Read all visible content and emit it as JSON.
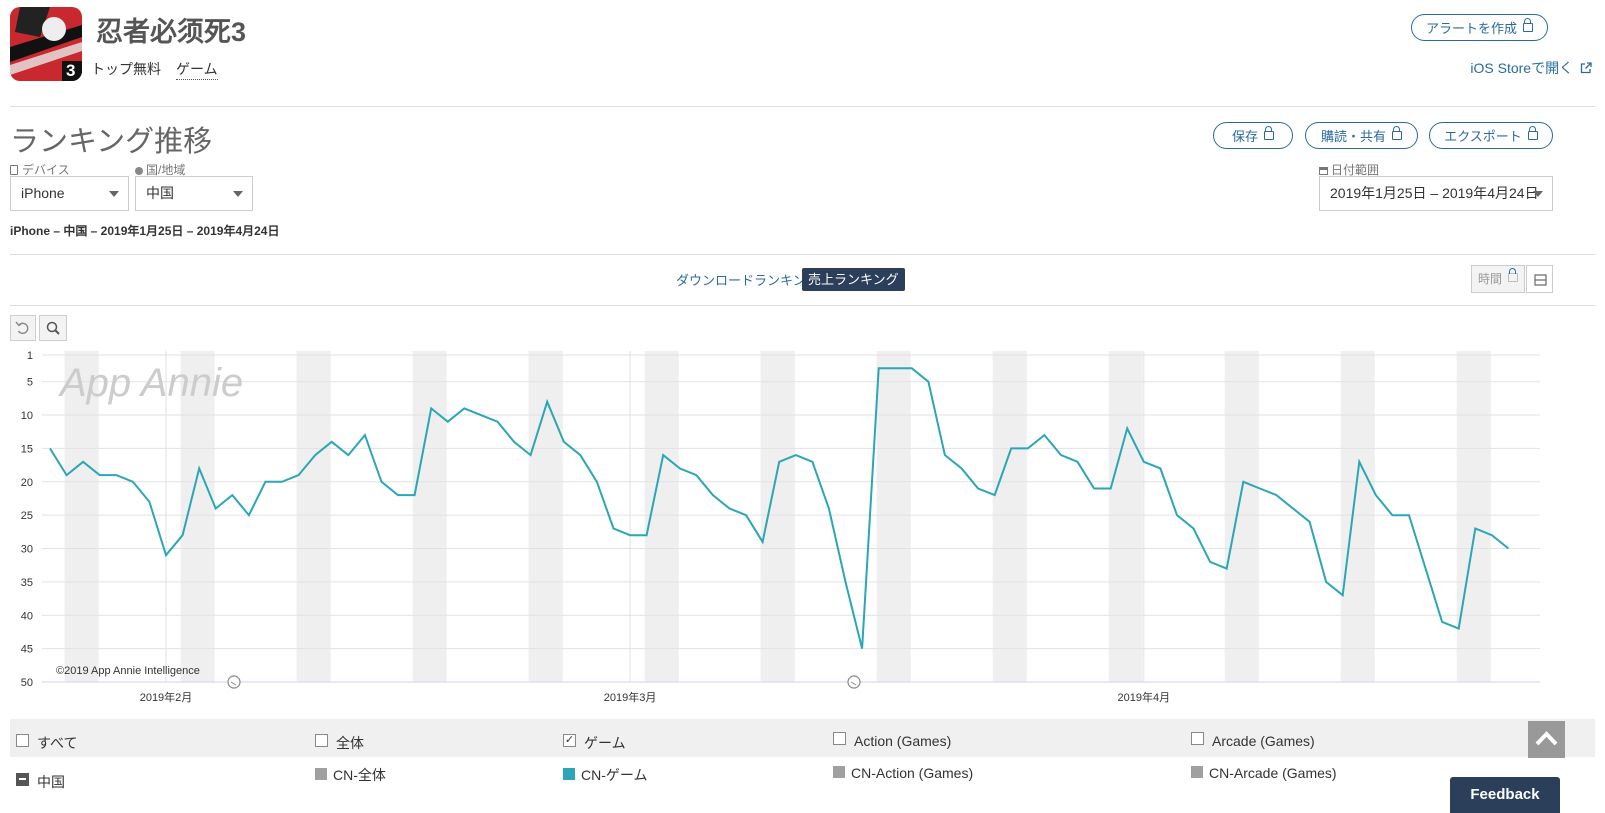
{
  "app": {
    "name": "忍者必须死3",
    "category": "トップ無料",
    "genre": "ゲーム",
    "icon_badge": "3"
  },
  "header_actions": {
    "alert_label": "アラートを作成",
    "ios_store_label": "iOS Storeで開く"
  },
  "page_title": "ランキング推移",
  "toolbar": {
    "save_label": "保存",
    "subscribe_label": "購読・共有",
    "export_label": "エクスポート"
  },
  "filters": {
    "device_label": "デバイス",
    "device_value": "iPhone",
    "region_label": "国/地域",
    "region_value": "中国",
    "date_label": "日付範囲",
    "date_value": "2019年1月25日 – 2019年4月24日"
  },
  "subtitle": "iPhone – 中国 – 2019年1月25日 – 2019年4月24日",
  "tabs": {
    "download": "ダウンロードランキング",
    "revenue": "売上ランキング"
  },
  "time_button_label": "時間",
  "chart_data": {
    "type": "line",
    "y_ticks": [
      "1",
      "5",
      "10",
      "15",
      "20",
      "25",
      "30",
      "35",
      "40",
      "45",
      "50"
    ],
    "ylim": [
      50,
      1
    ],
    "y_inverted": true,
    "x_tick_labels": [
      {
        "label": "2019年2月",
        "day": 7
      },
      {
        "label": "2019年3月",
        "day": 35
      },
      {
        "label": "2019年4月",
        "day": 66
      }
    ],
    "x_range_days": [
      0,
      89
    ],
    "weekend_bands": true,
    "grid": true,
    "watermark": "App Annie",
    "copyright": "©2019 App Annie Intelligence",
    "series": [
      {
        "name": "CN-ゲーム",
        "color": "#2aa6b6",
        "values": [
          15,
          19,
          17,
          19,
          19,
          20,
          23,
          31,
          28,
          18,
          24,
          22,
          25,
          20,
          20,
          19,
          16,
          14,
          16,
          13,
          20,
          22,
          22,
          9,
          11,
          9,
          10,
          11,
          14,
          16,
          8,
          14,
          16,
          20,
          27,
          28,
          28,
          16,
          18,
          19,
          22,
          24,
          25,
          29,
          17,
          16,
          17,
          24,
          35,
          45,
          3,
          3,
          3,
          5,
          16,
          18,
          21,
          22,
          15,
          15,
          13,
          16,
          17,
          21,
          21,
          12,
          17,
          18,
          25,
          27,
          32,
          33,
          20,
          21,
          22,
          24,
          26,
          35,
          37,
          17,
          22,
          25,
          25,
          33,
          41,
          42,
          27,
          28,
          30
        ]
      }
    ]
  },
  "legend": {
    "all_label": "すべて",
    "region_label": "中国",
    "columns": [
      {
        "header": "全体",
        "checked": false,
        "series": "CN-全体",
        "color": "#a0a0a0"
      },
      {
        "header": "ゲーム",
        "checked": true,
        "series": "CN-ゲーム",
        "color": "#2aa6b6"
      },
      {
        "header": "Action (Games)",
        "checked": false,
        "series": "CN-Action (Games)",
        "color": "#a0a0a0"
      },
      {
        "header": "Arcade (Games)",
        "checked": false,
        "series": "CN-Arcade (Games)",
        "color": "#a0a0a0"
      }
    ]
  },
  "feedback_label": "Feedback"
}
